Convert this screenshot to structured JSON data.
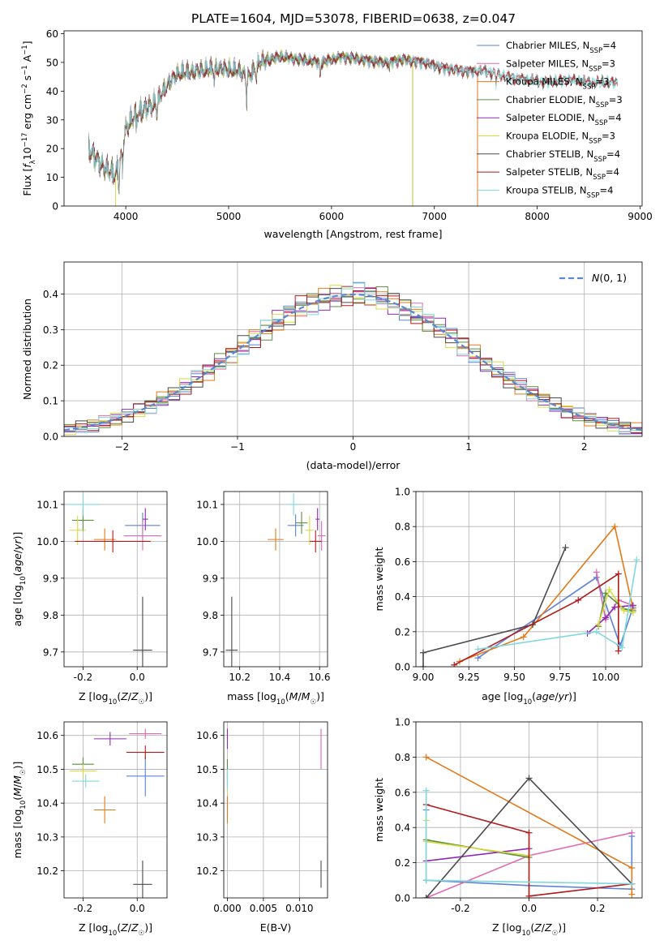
{
  "figure": {
    "suptitle": "PLATE=1604, MJD=53078, FIBERID=0638, z=0.047"
  },
  "colors": {
    "Chabrier MILES": "#5c82d6",
    "Salpeter MILES": "#e06ab0",
    "Kroupa MILES": "#e27a19",
    "Chabrier ELODIE": "#5a8f3c",
    "Salpeter ELODIE": "#8f2bb0",
    "Kroupa ELODIE": "#d8db3e",
    "Chabrier STELIB": "#4a4a4a",
    "Salpeter STELIB": "#b01a1a",
    "Kroupa STELIB": "#7fd8dc",
    "N01": "#5b87d1"
  },
  "chart_data": [
    {
      "id": "spectrum",
      "type": "line",
      "xlabel": "wavelength [Angstrom, rest frame]",
      "ylabel": "Flux [f_λ10^-17 erg cm^-2 s^-1 A^-1]",
      "xlim": [
        3400,
        9020
      ],
      "ylim": [
        0,
        61
      ],
      "xticks": [
        4000,
        5000,
        6000,
        7000,
        8000,
        9000
      ],
      "yticks": [
        0,
        10,
        20,
        30,
        40,
        50,
        60
      ],
      "grid": false,
      "legend_position": "right",
      "continuum": {
        "x": [
          3640,
          3700,
          3800,
          3900,
          3950,
          4000,
          4100,
          4200,
          4300,
          4400,
          4500,
          4700,
          4900,
          5100,
          5200,
          5300,
          5500,
          5700,
          5900,
          6100,
          6300,
          6500,
          6700,
          6900,
          7100,
          7300,
          7500,
          7700,
          7900,
          8100,
          8300,
          8500,
          8700,
          8780
        ],
        "y": [
          20,
          17,
          13,
          11,
          16,
          27,
          32,
          34,
          36,
          42,
          46,
          47,
          48,
          47,
          45,
          50,
          52,
          51,
          50,
          52,
          51,
          50,
          51,
          50,
          48,
          47,
          47,
          45,
          44,
          43,
          44,
          43,
          43,
          43
        ]
      },
      "series": [
        {
          "name": "Chabrier MILES",
          "nssp": "4",
          "x_end": 7400,
          "dropout": [
            7420
          ]
        },
        {
          "name": "Salpeter MILES",
          "nssp": "3",
          "x_end": 7400,
          "dropout": [
            7420
          ]
        },
        {
          "name": "Kroupa MILES",
          "nssp": "3",
          "x_end": 7400,
          "dropout": [
            7420
          ]
        },
        {
          "name": "Chabrier ELODIE",
          "nssp": "3",
          "x_end": 6780,
          "dropout": [
            6790
          ]
        },
        {
          "name": "Salpeter ELODIE",
          "nssp": "4",
          "x_end": 6780,
          "dropout": [
            6790
          ]
        },
        {
          "name": "Kroupa ELODIE",
          "nssp": "3",
          "x_end": 6780,
          "dropout": [
            3900,
            6790
          ]
        },
        {
          "name": "Chabrier STELIB",
          "nssp": "4",
          "x_end": 8780,
          "dropout": []
        },
        {
          "name": "Salpeter STELIB",
          "nssp": "4",
          "x_end": 8780,
          "dropout": []
        },
        {
          "name": "Kroupa STELIB",
          "nssp": "4",
          "x_end": 8780,
          "dropout": []
        }
      ]
    },
    {
      "id": "residual_hist",
      "type": "line",
      "xlabel": "(data-model)/error",
      "ylabel": "Normed distribution",
      "xlim": [
        -2.5,
        2.5
      ],
      "ylim": [
        0,
        0.49
      ],
      "xticks": [
        -2,
        -1,
        0,
        1,
        2
      ],
      "yticks": [
        0.0,
        0.1,
        0.2,
        0.3,
        0.4
      ],
      "grid": true,
      "legend_position": "top-right",
      "legend": [
        {
          "label": "N(0,1)",
          "style": "dashed"
        }
      ],
      "bin_width": 0.1,
      "normal": {
        "mean": 0,
        "sigma": 1
      },
      "series": [
        {
          "name": "Chabrier MILES",
          "phase": 0.3
        },
        {
          "name": "Salpeter MILES",
          "phase": 1.1
        },
        {
          "name": "Kroupa MILES",
          "phase": 2.0
        },
        {
          "name": "Chabrier ELODIE",
          "phase": 2.7
        },
        {
          "name": "Salpeter ELODIE",
          "phase": 3.5
        },
        {
          "name": "Kroupa ELODIE",
          "phase": 4.2
        },
        {
          "name": "Chabrier STELIB",
          "phase": 5.0
        },
        {
          "name": "Salpeter STELIB",
          "phase": 5.8
        },
        {
          "name": "Kroupa STELIB",
          "phase": 0.8
        }
      ]
    },
    {
      "id": "age_vs_Z",
      "type": "scatter",
      "xlabel": "Z [log10(Z/Z☉)]",
      "ylabel": "age [log10(age/yr)]",
      "xlim": [
        -0.27,
        0.11
      ],
      "ylim": [
        9.66,
        10.135
      ],
      "xticks": [
        -0.2,
        0.0
      ],
      "yticks": [
        9.7,
        9.8,
        9.9,
        10.0,
        10.1
      ],
      "grid": true,
      "points": [
        {
          "series": "Chabrier MILES",
          "x": 0.02,
          "y": 10.043,
          "xerr": 0.065,
          "yerr": 0.035
        },
        {
          "series": "Salpeter MILES",
          "x": 0.02,
          "y": 10.015,
          "xerr": 0.07,
          "yerr": 0.04
        },
        {
          "series": "Kroupa MILES",
          "x": -0.12,
          "y": 10.005,
          "xerr": 0.04,
          "yerr": 0.03
        },
        {
          "series": "Chabrier ELODIE",
          "x": -0.2,
          "y": 10.057,
          "xerr": 0.04,
          "yerr": 0.03
        },
        {
          "series": "Salpeter ELODIE",
          "x": 0.03,
          "y": 10.06,
          "xerr": 0.01,
          "yerr": 0.03
        },
        {
          "series": "Kroupa ELODIE",
          "x": -0.22,
          "y": 10.03,
          "xerr": 0.03,
          "yerr": 0.04
        },
        {
          "series": "Chabrier STELIB",
          "x": 0.02,
          "y": 9.705,
          "xerr": 0.035,
          "yerr": 0.145
        },
        {
          "series": "Salpeter STELIB",
          "x": -0.09,
          "y": 10.0,
          "xerr": 0.14,
          "yerr": 0.03
        },
        {
          "series": "Kroupa STELIB",
          "x": -0.2,
          "y": 10.1,
          "xerr": 0.06,
          "yerr": 0.03
        }
      ]
    },
    {
      "id": "age_vs_mass",
      "type": "scatter",
      "xlabel": "mass [log10(M/M☉)]",
      "ylabel": "",
      "xlim": [
        10.12,
        10.64
      ],
      "ylim": [
        9.66,
        10.135
      ],
      "xticks": [
        10.2,
        10.4,
        10.6
      ],
      "yticks": [
        9.7,
        9.8,
        9.9,
        10.0,
        10.1
      ],
      "grid": true,
      "points": [
        {
          "series": "Chabrier MILES",
          "x": 10.48,
          "y": 10.043,
          "xerr": 0.04,
          "yerr": 0.03
        },
        {
          "series": "Salpeter MILES",
          "x": 10.61,
          "y": 10.015,
          "xerr": 0.02,
          "yerr": 0.04
        },
        {
          "series": "Kroupa MILES",
          "x": 10.38,
          "y": 10.005,
          "xerr": 0.04,
          "yerr": 0.03
        },
        {
          "series": "Chabrier ELODIE",
          "x": 10.51,
          "y": 10.05,
          "xerr": 0.03,
          "yerr": 0.03
        },
        {
          "series": "Salpeter ELODIE",
          "x": 10.59,
          "y": 10.06,
          "xerr": 0.01,
          "yerr": 0.03
        },
        {
          "series": "Kroupa ELODIE",
          "x": 10.55,
          "y": 10.03,
          "xerr": 0.02,
          "yerr": 0.04
        },
        {
          "series": "Chabrier STELIB",
          "x": 10.16,
          "y": 9.705,
          "xerr": 0.03,
          "yerr": 0.145
        },
        {
          "series": "Salpeter STELIB",
          "x": 10.58,
          "y": 10.0,
          "xerr": 0.03,
          "yerr": 0.03
        },
        {
          "series": "Kroupa STELIB",
          "x": 10.47,
          "y": 10.1,
          "xerr": 0.03,
          "yerr": 0.03
        }
      ]
    },
    {
      "id": "weight_vs_age",
      "type": "line",
      "xlabel": "age [log10(age/yr)]",
      "ylabel": "mass weight",
      "xlim": [
        8.96,
        10.2
      ],
      "ylim": [
        0,
        1.0
      ],
      "xticks": [
        9.0,
        9.25,
        9.5,
        9.75,
        10.0
      ],
      "yticks": [
        0.0,
        0.2,
        0.4,
        0.6,
        0.8,
        1.0
      ],
      "grid": true,
      "series": [
        {
          "name": "Chabrier MILES",
          "x": [
            9.3,
            9.95,
            10.08,
            10.15
          ],
          "y": [
            0.05,
            0.51,
            0.12,
            0.34
          ]
        },
        {
          "name": "Salpeter MILES",
          "x": [
            9.95,
            10.0,
            10.07,
            10.15
          ],
          "y": [
            0.54,
            0.27,
            0.38,
            0.35
          ]
        },
        {
          "name": "Kroupa MILES",
          "x": [
            9.2,
            9.55,
            10.05,
            10.15
          ],
          "y": [
            0.03,
            0.17,
            0.8,
            0.33
          ]
        },
        {
          "name": "Chabrier ELODIE",
          "x": [
            9.96,
            10.0,
            10.1,
            10.15
          ],
          "y": [
            0.23,
            0.42,
            0.33,
            0.32
          ]
        },
        {
          "name": "Salpeter ELODIE",
          "x": [
            9.9,
            10.0,
            10.05,
            10.15
          ],
          "y": [
            0.19,
            0.28,
            0.34,
            0.35
          ]
        },
        {
          "name": "Kroupa ELODIE",
          "x": [
            9.96,
            10.02,
            10.1,
            10.15
          ],
          "y": [
            0.24,
            0.44,
            0.32,
            0.31
          ]
        },
        {
          "name": "Chabrier STELIB",
          "x": [
            9.0,
            9.0,
            9.6,
            9.78
          ],
          "y": [
            0.0,
            0.08,
            0.24,
            0.68
          ]
        },
        {
          "name": "Salpeter STELIB",
          "x": [
            9.17,
            9.85,
            10.07,
            10.07
          ],
          "y": [
            0.01,
            0.38,
            0.53,
            0.09
          ]
        },
        {
          "name": "Kroupa STELIB",
          "x": [
            9.3,
            9.95,
            10.09,
            10.17
          ],
          "y": [
            0.1,
            0.2,
            0.11,
            0.61
          ]
        }
      ]
    },
    {
      "id": "mass_vs_Z",
      "type": "scatter",
      "xlabel": "Z [log10(Z/Z☉)]",
      "ylabel": "mass [log10(M/M☉)]",
      "xlim": [
        -0.27,
        0.11
      ],
      "ylim": [
        10.12,
        10.64
      ],
      "xticks": [
        -0.2,
        0.0
      ],
      "yticks": [
        10.2,
        10.3,
        10.4,
        10.5,
        10.6
      ],
      "grid": true,
      "points": [
        {
          "series": "Chabrier MILES",
          "x": 0.03,
          "y": 10.48,
          "xerr": 0.07,
          "yerr": 0.06
        },
        {
          "series": "Salpeter MILES",
          "x": 0.03,
          "y": 10.605,
          "xerr": 0.06,
          "yerr": 0.015
        },
        {
          "series": "Kroupa MILES",
          "x": -0.12,
          "y": 10.38,
          "xerr": 0.04,
          "yerr": 0.04
        },
        {
          "series": "Chabrier ELODIE",
          "x": -0.2,
          "y": 10.515,
          "xerr": 0.04,
          "yerr": 0.02
        },
        {
          "series": "Salpeter ELODIE",
          "x": -0.1,
          "y": 10.59,
          "xerr": 0.06,
          "yerr": 0.02
        },
        {
          "series": "Kroupa ELODIE",
          "x": -0.2,
          "y": 10.495,
          "xerr": 0.05,
          "yerr": 0.02
        },
        {
          "series": "Chabrier STELIB",
          "x": 0.02,
          "y": 10.16,
          "xerr": 0.035,
          "yerr": 0.07
        },
        {
          "series": "Salpeter STELIB",
          "x": 0.03,
          "y": 10.55,
          "xerr": 0.07,
          "yerr": 0.02
        },
        {
          "series": "Kroupa STELIB",
          "x": -0.19,
          "y": 10.465,
          "xerr": 0.05,
          "yerr": 0.02
        }
      ]
    },
    {
      "id": "mass_vs_EBV",
      "type": "scatter",
      "xlabel": "E(B-V)",
      "ylabel": "",
      "xlim": [
        -0.0005,
        0.0139
      ],
      "ylim": [
        10.12,
        10.64
      ],
      "xticks": [
        0.0,
        0.005,
        0.01
      ],
      "xtick_labels": [
        "0.000",
        "0.005",
        "0.010"
      ],
      "yticks": [
        10.2,
        10.3,
        10.4,
        10.5,
        10.6
      ],
      "grid": true,
      "points": [
        {
          "series": "Salpeter ELODIE",
          "x": 0.0,
          "y": 10.59,
          "xerr": 0,
          "yerr": 0.03
        },
        {
          "series": "Chabrier ELODIE",
          "x": 0.0,
          "y": 10.5,
          "xerr": 0,
          "yerr": 0.03
        },
        {
          "series": "Kroupa ELODIE",
          "x": 0.0,
          "y": 10.46,
          "xerr": 0,
          "yerr": 0.03
        },
        {
          "series": "Kroupa MILES",
          "x": 0.0,
          "y": 10.38,
          "xerr": 0,
          "yerr": 0.04
        },
        {
          "series": "Kroupa STELIB",
          "x": 0.0,
          "y": 10.47,
          "xerr": 0,
          "yerr": 0.03
        },
        {
          "series": "Salpeter MILES",
          "x": 0.013,
          "y": 10.56,
          "xerr": 0,
          "yerr": 0.06
        },
        {
          "series": "Chabrier STELIB",
          "x": 0.013,
          "y": 10.19,
          "xerr": 0,
          "yerr": 0.04
        }
      ]
    },
    {
      "id": "weight_vs_Z",
      "type": "line",
      "xlabel": "Z [log10(Z/Z☉)]",
      "ylabel": "mass weight",
      "xlim": [
        -0.33,
        0.33
      ],
      "ylim": [
        0,
        1.0
      ],
      "xticks": [
        -0.2,
        0.0,
        0.2
      ],
      "yticks": [
        0.0,
        0.2,
        0.4,
        0.6,
        0.8,
        1.0
      ],
      "grid": true,
      "series": [
        {
          "name": "Chabrier MILES",
          "x": [
            -0.3,
            -0.3,
            0.0,
            0.3,
            0.3
          ],
          "y": [
            0.5,
            0.1,
            0.07,
            0.05,
            0.35
          ]
        },
        {
          "name": "Salpeter MILES",
          "x": [
            -0.3,
            0.0,
            0.3
          ],
          "y": [
            0.0,
            0.24,
            0.37
          ]
        },
        {
          "name": "Kroupa MILES",
          "x": [
            -0.3,
            0.3,
            0.3
          ],
          "y": [
            0.8,
            0.17,
            0.02
          ]
        },
        {
          "name": "Chabrier ELODIE",
          "x": [
            -0.3,
            0.0
          ],
          "y": [
            0.33,
            0.23
          ]
        },
        {
          "name": "Salpeter ELODIE",
          "x": [
            -0.3,
            0.0
          ],
          "y": [
            0.21,
            0.28
          ]
        },
        {
          "name": "Kroupa ELODIE",
          "x": [
            -0.3,
            -0.3,
            0.0
          ],
          "y": [
            0.44,
            0.32,
            0.24
          ]
        },
        {
          "name": "Chabrier STELIB",
          "x": [
            -0.3,
            0.0,
            0.3
          ],
          "y": [
            0.0,
            0.68,
            0.08
          ]
        },
        {
          "name": "Salpeter STELIB",
          "x": [
            -0.3,
            0.0,
            0.0,
            0.3
          ],
          "y": [
            0.53,
            0.37,
            0.01,
            0.08
          ]
        },
        {
          "name": "Kroupa STELIB",
          "x": [
            -0.3,
            -0.3,
            0.3
          ],
          "y": [
            0.61,
            0.1,
            0.08
          ]
        }
      ]
    }
  ]
}
